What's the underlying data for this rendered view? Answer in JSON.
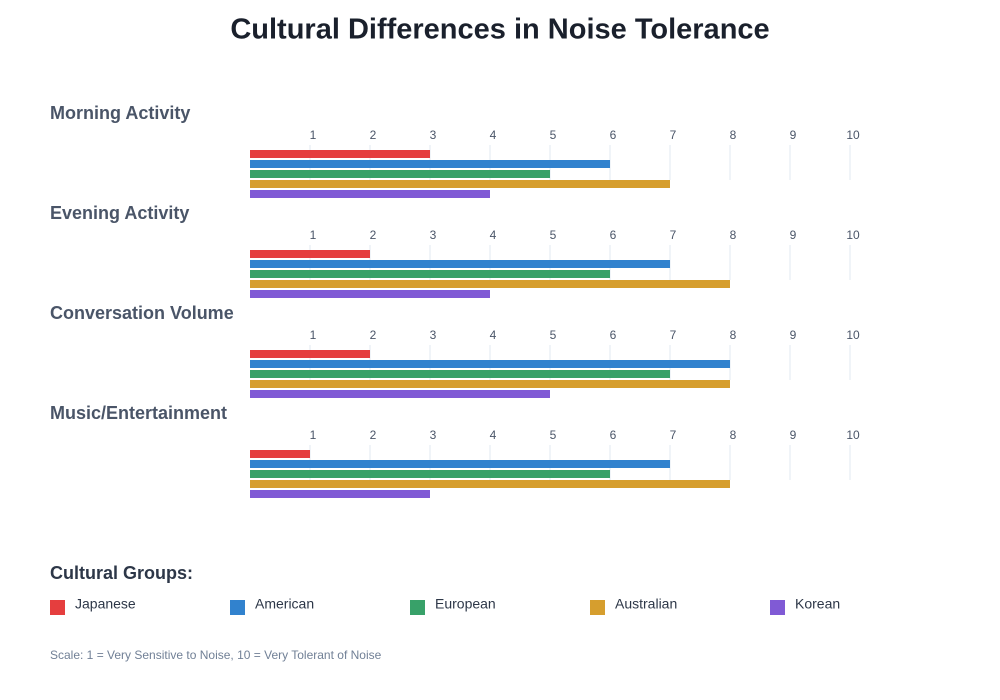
{
  "chart_data": {
    "type": "bar",
    "title": "Cultural Differences in Noise Tolerance",
    "categories": [
      "Morning Activity",
      "Evening Activity",
      "Conversation Volume",
      "Music/Entertainment"
    ],
    "series": [
      {
        "name": "Japanese",
        "color": "#e53e3e",
        "values": [
          3,
          2,
          2,
          1
        ]
      },
      {
        "name": "American",
        "color": "#3182ce",
        "values": [
          6,
          7,
          8,
          7
        ]
      },
      {
        "name": "European",
        "color": "#38a169",
        "values": [
          5,
          6,
          7,
          6
        ]
      },
      {
        "name": "Australian",
        "color": "#d69e2e",
        "values": [
          7,
          8,
          8,
          8
        ]
      },
      {
        "name": "Korean",
        "color": "#805ad5",
        "values": [
          4,
          4,
          5,
          3
        ]
      }
    ],
    "xlim": [
      0,
      10
    ],
    "xticks": [
      1,
      2,
      3,
      4,
      5,
      6,
      7,
      8,
      9,
      10
    ],
    "grid": true,
    "legend_title": "Cultural Groups:",
    "note": "Scale: 1 = Very Sensitive to Noise, 10 = Very Tolerant of Noise"
  }
}
